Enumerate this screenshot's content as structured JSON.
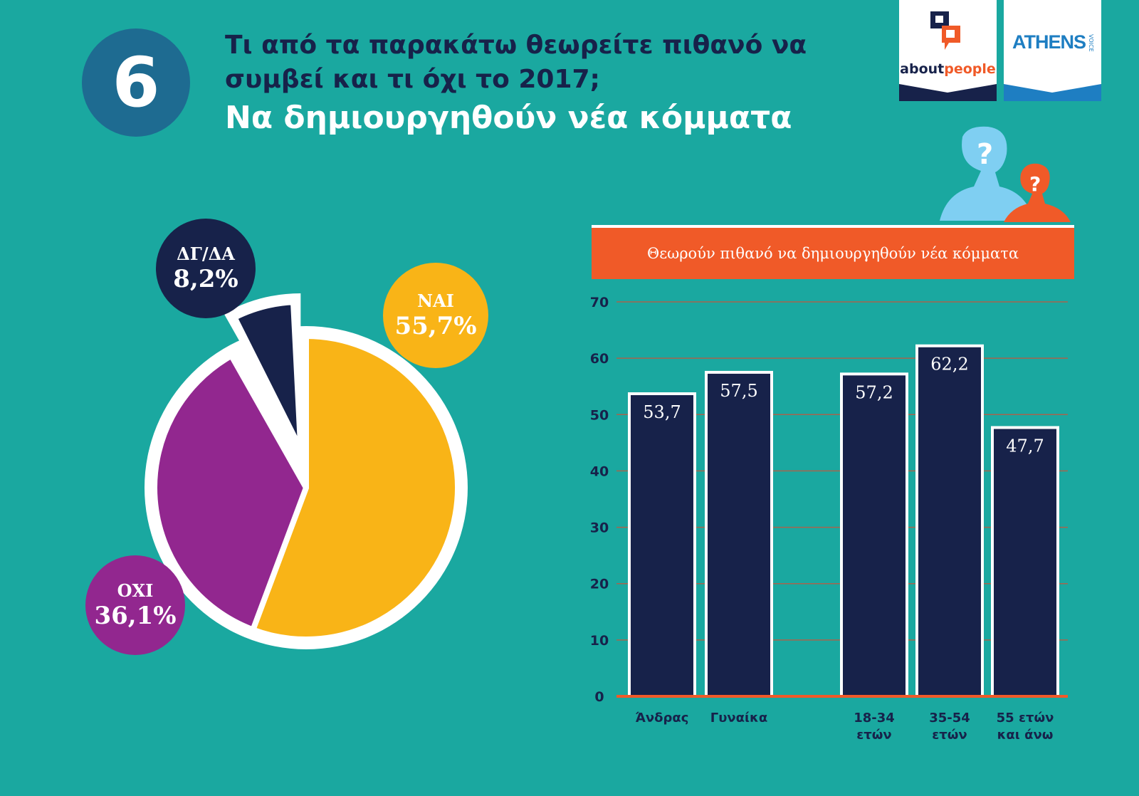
{
  "header": {
    "number": "6",
    "question": "Τι από τα παρακάτω θεωρείτε πιθανό να συμβεί και τι όχι το 2017;",
    "subtitle": "Να δημιουργηθούν νέα κόμματα"
  },
  "logos": {
    "about_part1": "about",
    "about_part2": "people",
    "athens": "ATHENS",
    "voice": "VOICE"
  },
  "colors": {
    "background": "#1aa8a0",
    "yes": "#f9b417",
    "no": "#92278f",
    "dk": "#17224a",
    "bars": "#17224a",
    "accent": "#f05a28"
  },
  "chart_data": [
    {
      "type": "pie",
      "title": "Να δημιουργηθούν νέα κόμματα",
      "slices": [
        {
          "label": "ΝΑΙ",
          "value": 55.7,
          "value_label": "55,7%"
        },
        {
          "label": "ΟΧΙ",
          "value": 36.1,
          "value_label": "36,1%"
        },
        {
          "label": "ΔΓ/ΔΑ",
          "value": 8.2,
          "value_label": "8,2%"
        }
      ]
    },
    {
      "type": "bar",
      "title": "Θεωρούν πιθανό να δημιουργηθούν νέα κόμματα",
      "categories": [
        [
          "Άνδρας"
        ],
        [
          "Γυναίκα"
        ],
        [
          "18-34",
          "ετών"
        ],
        [
          "35-54",
          "ετών"
        ],
        [
          "55 ετών",
          "και άνω"
        ]
      ],
      "values": [
        53.7,
        57.5,
        57.2,
        62.2,
        47.7
      ],
      "value_labels": [
        "53,7",
        "57,5",
        "57,2",
        "62,2",
        "47,7"
      ],
      "yticks": [
        0,
        10,
        20,
        30,
        40,
        50,
        60,
        70
      ],
      "ylim": [
        0,
        70
      ],
      "grid": true
    }
  ]
}
